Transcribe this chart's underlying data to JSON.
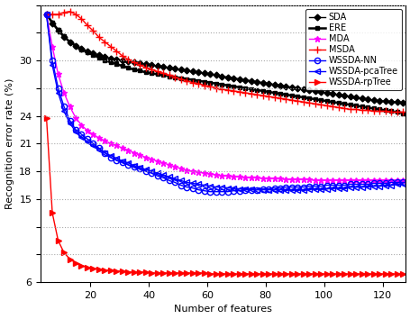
{
  "xlabel": "Number of features",
  "ylabel": "Recognition error rate (%)",
  "xlim": [
    3,
    128
  ],
  "ylim": [
    6,
    36
  ],
  "yticks": [
    6,
    9,
    12,
    15,
    18,
    21,
    24,
    27,
    30,
    33,
    36
  ],
  "ytick_labels": [
    "6",
    "",
    "",
    "15",
    "18",
    "21",
    "24",
    "",
    "30",
    "",
    ""
  ],
  "xticks": [
    20,
    40,
    60,
    80,
    100,
    120
  ],
  "grid_color": "#888888",
  "bg_color": "#ffffff",
  "series": {
    "SDA": {
      "color": "#000000",
      "marker": "D",
      "markersize": 3.5,
      "markerfacecolor": "#000000",
      "linewidth": 1.0,
      "x": [
        5,
        7,
        9,
        11,
        13,
        15,
        17,
        19,
        21,
        23,
        25,
        27,
        29,
        31,
        33,
        35,
        37,
        39,
        41,
        43,
        45,
        47,
        49,
        51,
        53,
        55,
        57,
        59,
        61,
        63,
        65,
        67,
        69,
        71,
        73,
        75,
        77,
        79,
        81,
        83,
        85,
        87,
        89,
        91,
        93,
        95,
        97,
        99,
        101,
        103,
        105,
        107,
        109,
        111,
        113,
        115,
        117,
        119,
        121,
        123,
        125,
        127
      ],
      "y": [
        35.0,
        34.0,
        33.2,
        32.5,
        32.0,
        31.6,
        31.3,
        31.0,
        30.8,
        30.6,
        30.4,
        30.2,
        30.1,
        30.0,
        29.9,
        29.8,
        29.7,
        29.6,
        29.5,
        29.4,
        29.3,
        29.2,
        29.1,
        29.0,
        28.9,
        28.8,
        28.7,
        28.6,
        28.5,
        28.4,
        28.3,
        28.2,
        28.1,
        28.0,
        27.9,
        27.8,
        27.7,
        27.6,
        27.5,
        27.4,
        27.3,
        27.2,
        27.1,
        27.0,
        26.9,
        26.8,
        26.7,
        26.6,
        26.5,
        26.4,
        26.3,
        26.2,
        26.1,
        26.0,
        25.9,
        25.8,
        25.7,
        25.6,
        25.6,
        25.5,
        25.5,
        25.4
      ]
    },
    "ERE": {
      "color": "#000000",
      "marker": "s",
      "markersize": 2.5,
      "markerfacecolor": "#000000",
      "linewidth": 1.8,
      "x": [
        5,
        7,
        9,
        11,
        13,
        15,
        17,
        19,
        21,
        23,
        25,
        27,
        29,
        31,
        33,
        35,
        37,
        39,
        41,
        43,
        45,
        47,
        49,
        51,
        53,
        55,
        57,
        59,
        61,
        63,
        65,
        67,
        69,
        71,
        73,
        75,
        77,
        79,
        81,
        83,
        85,
        87,
        89,
        91,
        93,
        95,
        97,
        99,
        101,
        103,
        105,
        107,
        109,
        111,
        113,
        115,
        117,
        119,
        121,
        123,
        125,
        127
      ],
      "y": [
        35.0,
        34.1,
        33.3,
        32.6,
        32.0,
        31.6,
        31.2,
        30.9,
        30.6,
        30.3,
        30.0,
        29.8,
        29.6,
        29.4,
        29.2,
        29.0,
        28.9,
        28.7,
        28.6,
        28.5,
        28.4,
        28.3,
        28.2,
        28.1,
        28.0,
        27.9,
        27.8,
        27.7,
        27.6,
        27.5,
        27.4,
        27.3,
        27.2,
        27.1,
        27.0,
        26.9,
        26.8,
        26.7,
        26.6,
        26.5,
        26.4,
        26.3,
        26.2,
        26.1,
        26.0,
        25.9,
        25.8,
        25.7,
        25.6,
        25.5,
        25.4,
        25.3,
        25.2,
        25.1,
        25.0,
        24.9,
        24.8,
        24.7,
        24.6,
        24.5,
        24.4,
        24.3
      ]
    },
    "MDA": {
      "color": "#ff00ff",
      "marker": "*",
      "markersize": 5,
      "markerfacecolor": "#ff00ff",
      "linewidth": 1.0,
      "x": [
        5,
        7,
        9,
        11,
        13,
        15,
        17,
        19,
        21,
        23,
        25,
        27,
        29,
        31,
        33,
        35,
        37,
        39,
        41,
        43,
        45,
        47,
        49,
        51,
        53,
        55,
        57,
        59,
        61,
        63,
        65,
        67,
        69,
        71,
        73,
        75,
        77,
        79,
        81,
        83,
        85,
        87,
        89,
        91,
        93,
        95,
        97,
        99,
        101,
        103,
        105,
        107,
        109,
        111,
        113,
        115,
        117,
        119,
        121,
        123,
        125,
        127
      ],
      "y": [
        35.0,
        31.5,
        28.5,
        26.5,
        25.0,
        23.8,
        23.0,
        22.4,
        22.0,
        21.6,
        21.3,
        21.0,
        20.8,
        20.5,
        20.3,
        20.0,
        19.8,
        19.5,
        19.3,
        19.1,
        18.9,
        18.7,
        18.5,
        18.3,
        18.1,
        18.0,
        17.9,
        17.8,
        17.7,
        17.6,
        17.5,
        17.5,
        17.4,
        17.4,
        17.3,
        17.3,
        17.3,
        17.2,
        17.2,
        17.2,
        17.2,
        17.1,
        17.1,
        17.1,
        17.1,
        17.1,
        17.0,
        17.0,
        17.0,
        17.0,
        17.0,
        17.0,
        17.0,
        17.0,
        17.0,
        17.0,
        17.0,
        17.0,
        17.0,
        17.0,
        17.0,
        17.0
      ]
    },
    "MSDA": {
      "color": "#ff0000",
      "marker": "+",
      "markersize": 6,
      "markerfacecolor": "#ff0000",
      "linewidth": 1.0,
      "x": [
        5,
        7,
        9,
        11,
        13,
        15,
        17,
        19,
        21,
        23,
        25,
        27,
        29,
        31,
        33,
        35,
        37,
        39,
        41,
        43,
        45,
        47,
        49,
        51,
        53,
        55,
        57,
        59,
        61,
        63,
        65,
        67,
        69,
        71,
        73,
        75,
        77,
        79,
        81,
        83,
        85,
        87,
        89,
        91,
        93,
        95,
        97,
        99,
        101,
        103,
        105,
        107,
        109,
        111,
        113,
        115,
        117,
        119,
        121,
        123,
        125,
        127
      ],
      "y": [
        35.0,
        35.0,
        35.0,
        35.2,
        35.3,
        35.0,
        34.5,
        33.8,
        33.2,
        32.5,
        32.0,
        31.5,
        31.0,
        30.5,
        30.1,
        29.8,
        29.5,
        29.2,
        29.0,
        28.8,
        28.6,
        28.4,
        28.2,
        28.0,
        27.8,
        27.6,
        27.5,
        27.3,
        27.2,
        27.0,
        26.9,
        26.8,
        26.7,
        26.6,
        26.5,
        26.4,
        26.3,
        26.2,
        26.1,
        26.0,
        25.9,
        25.8,
        25.7,
        25.6,
        25.5,
        25.4,
        25.3,
        25.2,
        25.1,
        25.0,
        24.9,
        24.8,
        24.7,
        24.7,
        24.6,
        24.6,
        24.5,
        24.5,
        24.5,
        24.4,
        24.4,
        24.4
      ]
    },
    "WSSDA_NN": {
      "color": "#0000ff",
      "marker": "o",
      "markersize": 4.5,
      "markerfacecolor": "none",
      "markeredgecolor": "#0000ff",
      "linewidth": 1.0,
      "x": [
        5,
        7,
        9,
        11,
        13,
        15,
        17,
        19,
        21,
        23,
        25,
        27,
        29,
        31,
        33,
        35,
        37,
        39,
        41,
        43,
        45,
        47,
        49,
        51,
        53,
        55,
        57,
        59,
        61,
        63,
        65,
        67,
        69,
        71,
        73,
        75,
        77,
        79,
        81,
        83,
        85,
        87,
        89,
        91,
        93,
        95,
        97,
        99,
        101,
        103,
        105,
        107,
        109,
        111,
        113,
        115,
        117,
        119,
        121,
        123,
        125,
        127
      ],
      "y": [
        35.0,
        30.0,
        27.0,
        25.0,
        23.5,
        22.5,
        22.0,
        21.5,
        21.0,
        20.5,
        20.0,
        19.5,
        19.2,
        19.0,
        18.7,
        18.5,
        18.3,
        18.0,
        17.8,
        17.5,
        17.3,
        17.0,
        16.8,
        16.5,
        16.3,
        16.2,
        16.0,
        15.9,
        15.8,
        15.8,
        15.8,
        15.8,
        15.9,
        15.9,
        16.0,
        16.0,
        16.0,
        16.1,
        16.1,
        16.2,
        16.2,
        16.3,
        16.3,
        16.3,
        16.3,
        16.4,
        16.4,
        16.4,
        16.5,
        16.5,
        16.5,
        16.5,
        16.6,
        16.6,
        16.6,
        16.6,
        16.7,
        16.7,
        16.7,
        16.8,
        16.8,
        16.8
      ]
    },
    "WSSDA_pcaTree": {
      "color": "#0000ff",
      "marker": "<",
      "markersize": 4.5,
      "markerfacecolor": "none",
      "markeredgecolor": "#0000ff",
      "linewidth": 1.0,
      "x": [
        5,
        7,
        9,
        11,
        13,
        15,
        17,
        19,
        21,
        23,
        25,
        27,
        29,
        31,
        33,
        35,
        37,
        39,
        41,
        43,
        45,
        47,
        49,
        51,
        53,
        55,
        57,
        59,
        61,
        63,
        65,
        67,
        69,
        71,
        73,
        75,
        77,
        79,
        81,
        83,
        85,
        87,
        89,
        91,
        93,
        95,
        97,
        99,
        101,
        103,
        105,
        107,
        109,
        111,
        113,
        115,
        117,
        119,
        121,
        123,
        125,
        127
      ],
      "y": [
        35.0,
        29.5,
        26.5,
        24.5,
        23.2,
        22.3,
        21.7,
        21.2,
        20.8,
        20.4,
        20.0,
        19.7,
        19.4,
        19.1,
        18.9,
        18.6,
        18.4,
        18.2,
        18.0,
        17.8,
        17.6,
        17.4,
        17.2,
        17.0,
        16.8,
        16.7,
        16.6,
        16.5,
        16.4,
        16.3,
        16.3,
        16.2,
        16.2,
        16.1,
        16.1,
        16.1,
        16.0,
        16.0,
        16.0,
        16.0,
        16.0,
        16.0,
        16.0,
        16.0,
        16.0,
        16.1,
        16.1,
        16.1,
        16.1,
        16.2,
        16.2,
        16.2,
        16.3,
        16.3,
        16.3,
        16.4,
        16.4,
        16.4,
        16.5,
        16.5,
        16.6,
        16.6
      ]
    },
    "WSSDA_rpTree": {
      "color": "#ff0000",
      "marker": ">",
      "markersize": 5,
      "markerfacecolor": "#ff0000",
      "linewidth": 1.0,
      "x": [
        5,
        7,
        9,
        11,
        13,
        15,
        17,
        19,
        21,
        23,
        25,
        27,
        29,
        31,
        33,
        35,
        37,
        39,
        41,
        43,
        45,
        47,
        49,
        51,
        53,
        55,
        57,
        59,
        61,
        63,
        65,
        67,
        69,
        71,
        73,
        75,
        77,
        79,
        81,
        83,
        85,
        87,
        89,
        91,
        93,
        95,
        97,
        99,
        101,
        103,
        105,
        107,
        109,
        111,
        113,
        115,
        117,
        119,
        121,
        123,
        125,
        127
      ],
      "y": [
        23.8,
        13.5,
        10.5,
        9.2,
        8.5,
        8.1,
        7.8,
        7.6,
        7.5,
        7.4,
        7.3,
        7.3,
        7.2,
        7.2,
        7.1,
        7.1,
        7.1,
        7.1,
        7.0,
        7.0,
        7.0,
        7.0,
        7.0,
        7.0,
        7.0,
        7.0,
        7.0,
        7.0,
        6.9,
        6.9,
        6.9,
        6.9,
        6.9,
        6.9,
        6.9,
        6.9,
        6.9,
        6.9,
        6.9,
        6.9,
        6.9,
        6.9,
        6.9,
        6.9,
        6.9,
        6.9,
        6.9,
        6.9,
        6.9,
        6.9,
        6.9,
        6.9,
        6.9,
        6.9,
        6.9,
        6.9,
        6.9,
        6.9,
        6.9,
        6.9,
        6.9,
        6.9
      ]
    }
  },
  "legend_loc": "upper right",
  "fontsize": 8,
  "tick_fontsize": 8
}
